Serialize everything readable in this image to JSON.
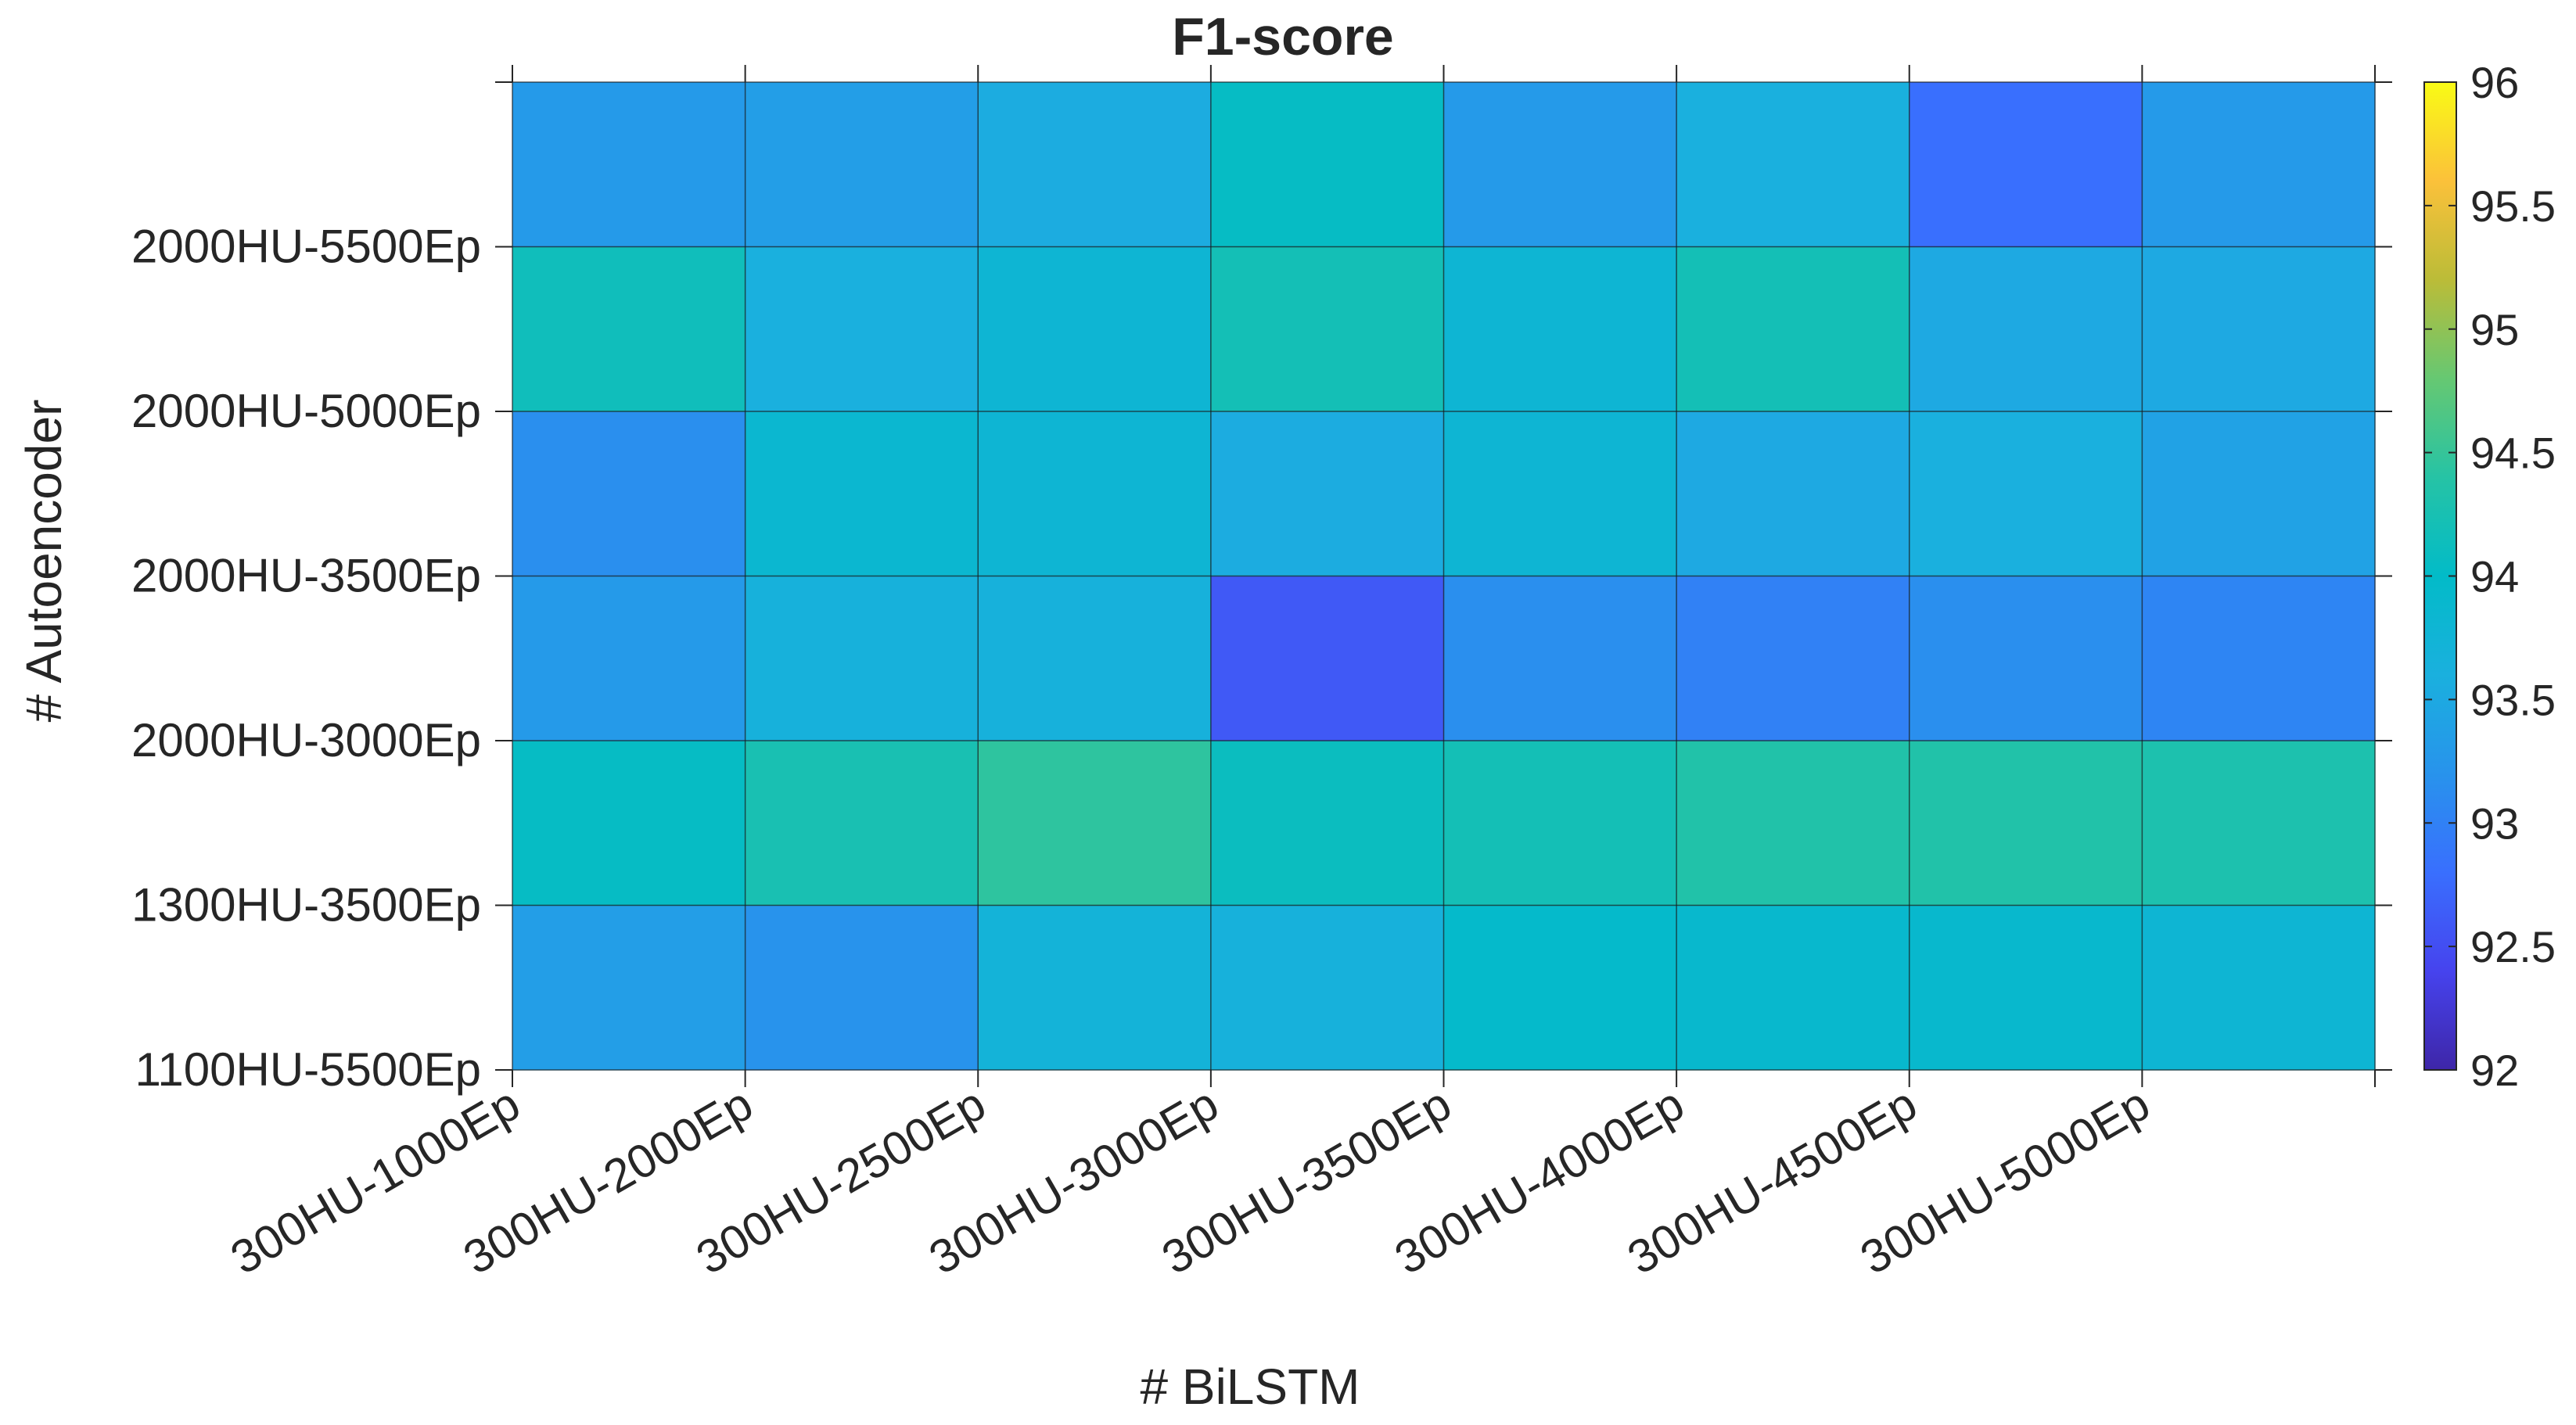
{
  "chart_data": {
    "type": "heatmap",
    "title": "F1-score",
    "xlabel": "# BiLSTM",
    "ylabel": "# Autoencoder",
    "x_categories": [
      "300HU-1000Ep",
      "300HU-2000Ep",
      "300HU-2500Ep",
      "300HU-3000Ep",
      "300HU-3500Ep",
      "300HU-4000Ep",
      "300HU-4500Ep",
      "300HU-5000Ep"
    ],
    "y_categories": [
      "1100HU-5500Ep",
      "1300HU-3500Ep",
      "2000HU-3000Ep",
      "2000HU-3500Ep",
      "2000HU-5000Ep",
      "2000HU-5500Ep"
    ],
    "values": [
      [
        93.35,
        93.2,
        93.7,
        93.65,
        93.95,
        93.9,
        93.9,
        93.8
      ],
      [
        94.05,
        94.25,
        94.45,
        94.1,
        94.2,
        94.35,
        94.35,
        94.3
      ],
      [
        93.3,
        93.65,
        93.65,
        92.6,
        93.15,
        93.0,
        93.15,
        93.05
      ],
      [
        93.15,
        93.85,
        93.8,
        93.55,
        93.8,
        93.5,
        93.6,
        93.4
      ],
      [
        94.15,
        93.6,
        93.8,
        94.2,
        93.8,
        94.2,
        93.5,
        93.5
      ],
      [
        93.3,
        93.35,
        93.55,
        94.05,
        93.3,
        93.6,
        92.8,
        93.3
      ]
    ],
    "colorbar": {
      "min": 92,
      "max": 96,
      "ticks": [
        "92",
        "92.5",
        "93",
        "93.5",
        "94",
        "94.5",
        "95",
        "95.5",
        "96"
      ]
    },
    "colormap": "parula",
    "grid": true
  }
}
